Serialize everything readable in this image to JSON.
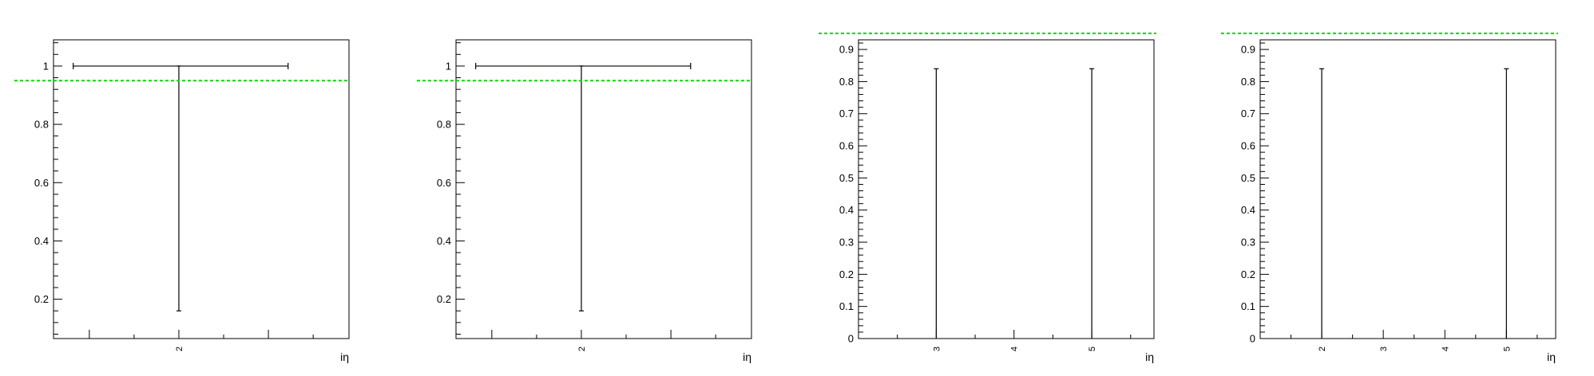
{
  "chart_data": [
    {
      "type": "errorbar",
      "xlabel": "iη",
      "ylabel": "",
      "xlim": [
        0.6,
        3.9
      ],
      "ylim": [
        0.065,
        1.09
      ],
      "x_tick_labels": [
        {
          "value": 2,
          "label": "2"
        }
      ],
      "y_tick_labels": [
        {
          "value": 0.2,
          "label": "0.2"
        },
        {
          "value": 0.4,
          "label": "0.4"
        },
        {
          "value": 0.6,
          "label": "0.6"
        },
        {
          "value": 0.8,
          "label": "0.8"
        },
        {
          "value": 1,
          "label": "1"
        }
      ],
      "points": [
        {
          "x": 2.0,
          "y": 1.0,
          "x_low": 0.82,
          "x_high": 3.22,
          "y_low": 0.16,
          "y_high": 1.0
        }
      ],
      "reference_line": {
        "y": 0.95,
        "color": "#00dd00",
        "style": "dashed"
      },
      "grid": false
    },
    {
      "type": "errorbar",
      "xlabel": "iη",
      "ylabel": "",
      "xlim": [
        0.6,
        3.9
      ],
      "ylim": [
        0.065,
        1.09
      ],
      "x_tick_labels": [
        {
          "value": 2,
          "label": "2"
        }
      ],
      "y_tick_labels": [
        {
          "value": 0.2,
          "label": "0.2"
        },
        {
          "value": 0.4,
          "label": "0.4"
        },
        {
          "value": 0.6,
          "label": "0.6"
        },
        {
          "value": 0.8,
          "label": "0.8"
        },
        {
          "value": 1,
          "label": "1"
        }
      ],
      "points": [
        {
          "x": 2.0,
          "y": 1.0,
          "x_low": 0.82,
          "x_high": 3.22,
          "y_low": 0.16,
          "y_high": 1.0
        }
      ],
      "reference_line": {
        "y": 0.95,
        "color": "#00dd00",
        "style": "dashed"
      },
      "grid": false
    },
    {
      "type": "errorbar",
      "xlabel": "iη",
      "ylabel": "",
      "xlim": [
        2.0,
        5.8
      ],
      "ylim": [
        0,
        0.93
      ],
      "x_tick_labels": [
        {
          "value": 3,
          "label": "3"
        },
        {
          "value": 4,
          "label": "4"
        },
        {
          "value": 5,
          "label": "5"
        }
      ],
      "y_tick_labels": [
        {
          "value": 0,
          "label": "0"
        },
        {
          "value": 0.1,
          "label": "0.1"
        },
        {
          "value": 0.2,
          "label": "0.2"
        },
        {
          "value": 0.3,
          "label": "0.3"
        },
        {
          "value": 0.4,
          "label": "0.4"
        },
        {
          "value": 0.5,
          "label": "0.5"
        },
        {
          "value": 0.6,
          "label": "0.6"
        },
        {
          "value": 0.7,
          "label": "0.7"
        },
        {
          "value": 0.8,
          "label": "0.8"
        },
        {
          "value": 0.9,
          "label": "0.9"
        }
      ],
      "points": [
        {
          "x": 3.0,
          "y_low": 0.0,
          "y_high": 0.84
        },
        {
          "x": 5.0,
          "y_low": 0.0,
          "y_high": 0.84
        }
      ],
      "reference_line": {
        "y": 0.95,
        "color": "#00dd00",
        "style": "dashed"
      },
      "grid": false
    },
    {
      "type": "errorbar",
      "xlabel": "iη",
      "ylabel": "",
      "xlim": [
        1.0,
        5.8
      ],
      "ylim": [
        0,
        0.93
      ],
      "x_tick_labels": [
        {
          "value": 2,
          "label": "2"
        },
        {
          "value": 3,
          "label": "3"
        },
        {
          "value": 4,
          "label": "4"
        },
        {
          "value": 5,
          "label": "5"
        }
      ],
      "y_tick_labels": [
        {
          "value": 0,
          "label": "0"
        },
        {
          "value": 0.1,
          "label": "0.1"
        },
        {
          "value": 0.2,
          "label": "0.2"
        },
        {
          "value": 0.3,
          "label": "0.3"
        },
        {
          "value": 0.4,
          "label": "0.4"
        },
        {
          "value": 0.5,
          "label": "0.5"
        },
        {
          "value": 0.6,
          "label": "0.6"
        },
        {
          "value": 0.7,
          "label": "0.7"
        },
        {
          "value": 0.8,
          "label": "0.8"
        },
        {
          "value": 0.9,
          "label": "0.9"
        }
      ],
      "points": [
        {
          "x": 2.0,
          "y_low": 0.0,
          "y_high": 0.84
        },
        {
          "x": 5.0,
          "y_low": 0.0,
          "y_high": 0.84
        }
      ],
      "reference_line": {
        "y": 0.95,
        "color": "#00dd00",
        "style": "dashed"
      },
      "grid": false
    }
  ]
}
